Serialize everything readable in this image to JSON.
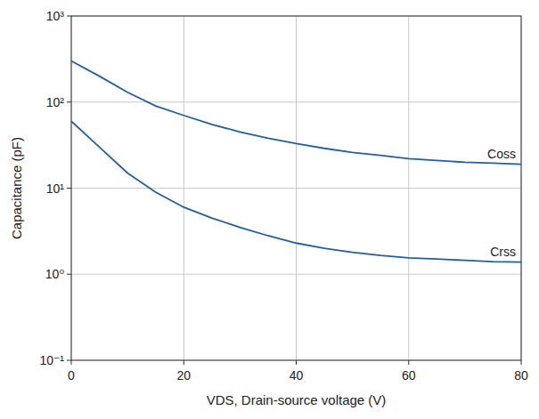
{
  "chart_data": {
    "type": "line",
    "x_label": "VDS, Drain-source voltage (V)",
    "y_label": "Capacitance (pF)",
    "x": [
      0,
      5,
      10,
      15,
      20,
      25,
      30,
      35,
      40,
      45,
      50,
      55,
      60,
      65,
      70,
      75,
      80
    ],
    "series": [
      {
        "name": "Coss",
        "color": "#1f5fa8",
        "values": [
          300,
          200,
          130,
          90,
          70,
          55,
          45,
          38,
          33,
          29,
          26,
          24,
          22,
          21,
          20,
          19.5,
          19
        ]
      },
      {
        "name": "Crss",
        "color": "#1f5fa8",
        "values": [
          60,
          30,
          15,
          9,
          6,
          4.5,
          3.5,
          2.8,
          2.3,
          2,
          1.8,
          1.65,
          1.55,
          1.5,
          1.45,
          1.4,
          1.38
        ]
      }
    ],
    "xlim": [
      0,
      80
    ],
    "xticks": [
      0,
      20,
      40,
      60,
      80
    ],
    "ylim": [
      0.1,
      1000
    ],
    "yticks": [
      {
        "value": 0.1,
        "label": "10⁻¹"
      },
      {
        "value": 1,
        "label": "10⁰"
      },
      {
        "value": 10,
        "label": "10¹"
      },
      {
        "value": 100,
        "label": "10²"
      },
      {
        "value": 1000,
        "label": "10³"
      }
    ],
    "log": "y",
    "grid": true
  }
}
